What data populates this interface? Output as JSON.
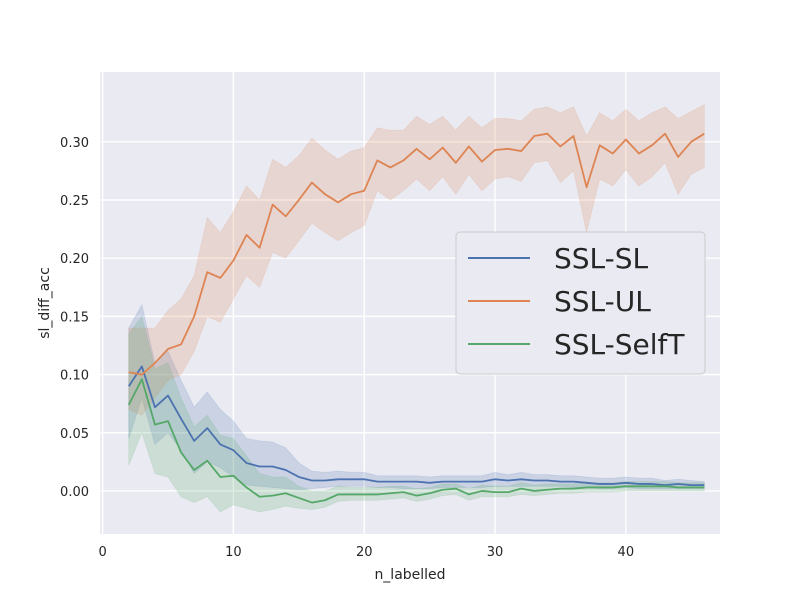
{
  "chart_data": {
    "type": "line",
    "xlabel": "n_labelled",
    "ylabel": "sl_diff_acc",
    "xlim": [
      -0.2,
      47.2
    ],
    "ylim": [
      -0.037,
      0.36
    ],
    "xticks": [
      0,
      10,
      20,
      30,
      40
    ],
    "yticks": [
      0.0,
      0.05,
      0.1,
      0.15,
      0.2,
      0.25,
      0.3
    ],
    "ytick_labels": [
      "0.00",
      "0.05",
      "0.10",
      "0.15",
      "0.20",
      "0.25",
      "0.30"
    ],
    "grid": true,
    "legend_position": "center-right",
    "x": [
      2,
      3,
      4,
      5,
      6,
      7,
      8,
      9,
      10,
      11,
      12,
      13,
      14,
      15,
      16,
      17,
      18,
      19,
      20,
      21,
      22,
      23,
      24,
      25,
      26,
      27,
      28,
      29,
      30,
      31,
      32,
      33,
      34,
      35,
      36,
      37,
      38,
      39,
      40,
      41,
      42,
      43,
      44,
      45,
      46
    ],
    "series": [
      {
        "name": "SSL-SL",
        "color": "#4c72b0",
        "values": [
          0.09,
          0.107,
          0.072,
          0.082,
          0.062,
          0.043,
          0.054,
          0.04,
          0.035,
          0.024,
          0.021,
          0.021,
          0.018,
          0.012,
          0.009,
          0.009,
          0.01,
          0.01,
          0.01,
          0.008,
          0.008,
          0.008,
          0.008,
          0.007,
          0.008,
          0.008,
          0.008,
          0.008,
          0.01,
          0.009,
          0.01,
          0.009,
          0.009,
          0.008,
          0.008,
          0.007,
          0.006,
          0.006,
          0.007,
          0.006,
          0.006,
          0.005,
          0.006,
          0.005,
          0.005
        ],
        "lower": [
          0.045,
          0.08,
          0.04,
          0.05,
          0.035,
          0.015,
          0.025,
          0.02,
          0.012,
          0.005,
          0.004,
          0.003,
          0.002,
          0.001,
          0.002,
          0.003,
          0.004,
          0.004,
          0.004,
          0.003,
          0.003,
          0.002,
          0.002,
          0.002,
          0.003,
          0.003,
          0.003,
          0.003,
          0.004,
          0.004,
          0.004,
          0.004,
          0.004,
          0.004,
          0.003,
          0.003,
          0.002,
          0.002,
          0.003,
          0.002,
          0.002,
          0.002,
          0.002,
          0.002,
          0.002
        ],
        "upper": [
          0.14,
          0.16,
          0.11,
          0.12,
          0.095,
          0.072,
          0.085,
          0.07,
          0.06,
          0.045,
          0.043,
          0.042,
          0.037,
          0.024,
          0.017,
          0.016,
          0.017,
          0.016,
          0.016,
          0.013,
          0.013,
          0.013,
          0.013,
          0.012,
          0.013,
          0.013,
          0.013,
          0.013,
          0.016,
          0.014,
          0.016,
          0.014,
          0.014,
          0.013,
          0.013,
          0.012,
          0.011,
          0.011,
          0.012,
          0.011,
          0.011,
          0.009,
          0.01,
          0.009,
          0.008
        ]
      },
      {
        "name": "SSL-UL",
        "color": "#dd8452",
        "values": [
          0.102,
          0.1,
          0.11,
          0.122,
          0.126,
          0.15,
          0.188,
          0.183,
          0.198,
          0.22,
          0.209,
          0.246,
          0.236,
          0.25,
          0.265,
          0.255,
          0.248,
          0.255,
          0.258,
          0.284,
          0.278,
          0.284,
          0.294,
          0.285,
          0.295,
          0.282,
          0.296,
          0.283,
          0.293,
          0.294,
          0.292,
          0.305,
          0.307,
          0.296,
          0.305,
          0.261,
          0.297,
          0.29,
          0.302,
          0.29,
          0.297,
          0.307,
          0.287,
          0.3,
          0.307
        ],
        "lower": [
          0.07,
          0.065,
          0.08,
          0.095,
          0.1,
          0.12,
          0.15,
          0.145,
          0.165,
          0.185,
          0.175,
          0.205,
          0.2,
          0.215,
          0.23,
          0.222,
          0.215,
          0.222,
          0.228,
          0.258,
          0.25,
          0.258,
          0.268,
          0.258,
          0.27,
          0.255,
          0.272,
          0.258,
          0.268,
          0.27,
          0.266,
          0.282,
          0.284,
          0.265,
          0.275,
          0.222,
          0.268,
          0.262,
          0.276,
          0.262,
          0.27,
          0.282,
          0.255,
          0.272,
          0.278
        ],
        "upper": [
          0.14,
          0.14,
          0.14,
          0.155,
          0.165,
          0.185,
          0.235,
          0.222,
          0.24,
          0.262,
          0.25,
          0.285,
          0.278,
          0.288,
          0.303,
          0.293,
          0.285,
          0.292,
          0.295,
          0.312,
          0.31,
          0.31,
          0.322,
          0.315,
          0.322,
          0.31,
          0.322,
          0.312,
          0.32,
          0.32,
          0.318,
          0.328,
          0.33,
          0.325,
          0.33,
          0.305,
          0.325,
          0.318,
          0.328,
          0.318,
          0.325,
          0.33,
          0.32,
          0.326,
          0.332
        ]
      },
      {
        "name": "SSL-SelfT",
        "color": "#55a868",
        "values": [
          0.074,
          0.096,
          0.057,
          0.06,
          0.033,
          0.018,
          0.026,
          0.012,
          0.013,
          0.003,
          -0.005,
          -0.004,
          -0.002,
          -0.006,
          -0.01,
          -0.008,
          -0.003,
          -0.003,
          -0.003,
          -0.003,
          -0.002,
          -0.001,
          -0.004,
          -0.002,
          0.001,
          0.002,
          -0.003,
          0.0,
          -0.001,
          -0.001,
          0.002,
          0.0,
          0.001,
          0.002,
          0.002,
          0.003,
          0.003,
          0.003,
          0.004,
          0.004,
          0.004,
          0.004,
          0.003,
          0.003,
          0.003
        ],
        "lower": [
          0.022,
          0.05,
          0.015,
          0.012,
          -0.005,
          -0.01,
          -0.005,
          -0.018,
          -0.012,
          -0.015,
          -0.018,
          -0.016,
          -0.013,
          -0.015,
          -0.016,
          -0.014,
          -0.009,
          -0.008,
          -0.008,
          -0.008,
          -0.007,
          -0.006,
          -0.009,
          -0.007,
          -0.004,
          -0.003,
          -0.008,
          -0.005,
          -0.005,
          -0.005,
          -0.003,
          -0.004,
          -0.003,
          -0.002,
          -0.002,
          -0.001,
          -0.001,
          -0.001,
          0.0,
          0.0,
          0.0,
          0.0,
          0.0,
          0.0,
          0.0
        ],
        "upper": [
          0.135,
          0.15,
          0.105,
          0.11,
          0.08,
          0.055,
          0.065,
          0.048,
          0.045,
          0.03,
          0.015,
          0.012,
          0.012,
          0.004,
          0.0,
          0.0,
          0.004,
          0.003,
          0.003,
          0.003,
          0.004,
          0.004,
          0.002,
          0.003,
          0.006,
          0.006,
          0.002,
          0.005,
          0.004,
          0.004,
          0.007,
          0.005,
          0.006,
          0.006,
          0.006,
          0.007,
          0.007,
          0.007,
          0.008,
          0.008,
          0.008,
          0.008,
          0.007,
          0.007,
          0.007
        ]
      }
    ]
  }
}
